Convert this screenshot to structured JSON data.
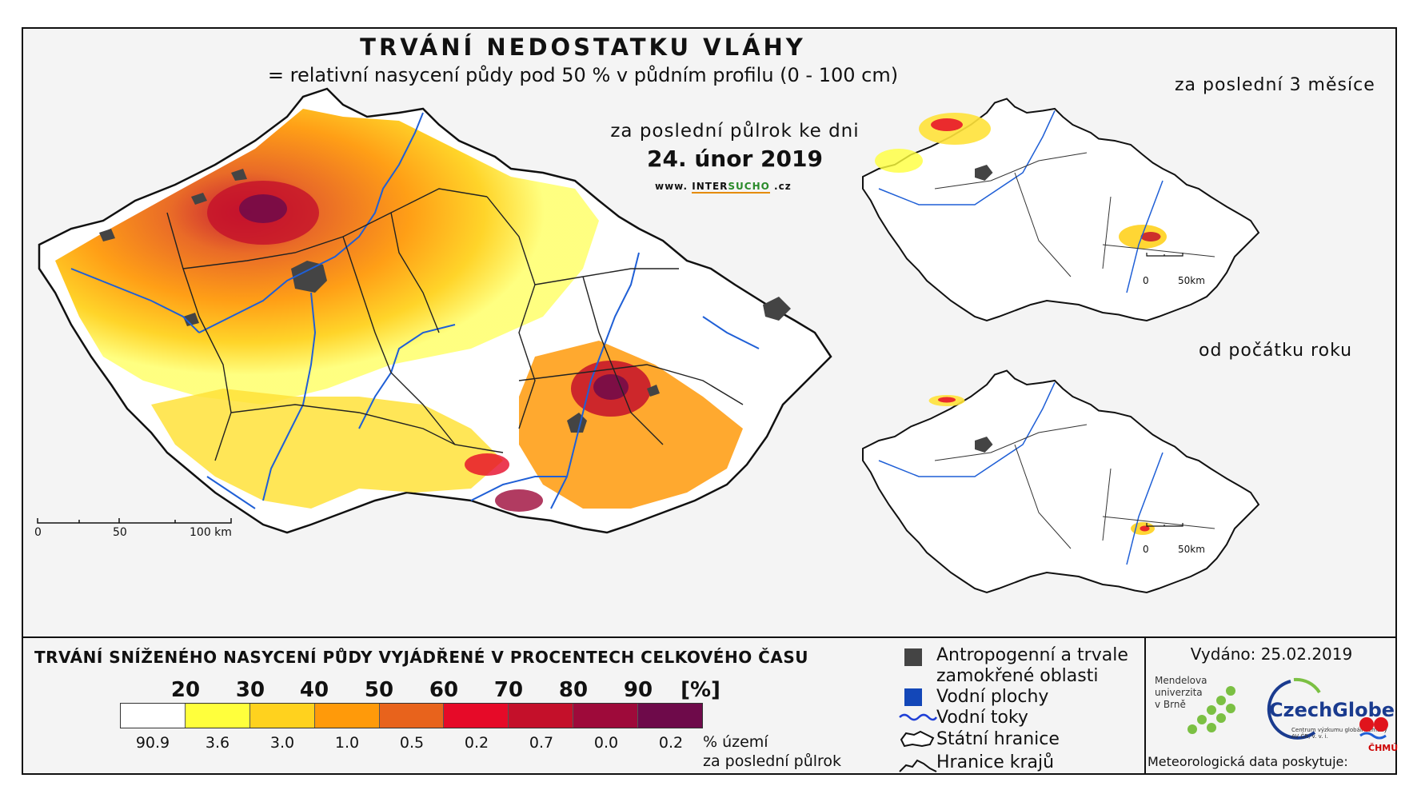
{
  "map": {
    "title": "TRVÁNÍ NEDOSTATKU VLÁHY",
    "subtitle": "= relativní nasycení půdy pod 50 % v půdním profilu (0 - 100 cm)",
    "period_label": "za poslední půlrok ke dni",
    "date": "24. únor 2019",
    "website_prefix": "www.",
    "website_brand1": "INTER",
    "website_brand2": "SUCHO",
    "website_suffix": ".cz",
    "scale": {
      "zero": "0",
      "mid": "50",
      "end": "100 km"
    }
  },
  "insets": [
    {
      "title": "za poslední 3 měsíce",
      "scale_zero": "0",
      "scale_end": "50km"
    },
    {
      "title": "od počátku roku",
      "scale_zero": "0",
      "scale_end": "50km"
    }
  ],
  "legend": {
    "title": "TRVÁNÍ SNÍŽENÉHO NASYCENÍ PŮDY VYJÁDŘENÉ V PROCENTECH CELKOVÉHO ČASU",
    "thresholds": [
      "20",
      "30",
      "40",
      "50",
      "60",
      "70",
      "80",
      "90"
    ],
    "unit": "[%]",
    "classes": [
      {
        "color": "#ffffff",
        "area_pct": "90.9"
      },
      {
        "color": "#ffff3c",
        "area_pct": "3.6"
      },
      {
        "color": "#ffd21e",
        "area_pct": "3.0"
      },
      {
        "color": "#ff9a0a",
        "area_pct": "1.0"
      },
      {
        "color": "#e8631c",
        "area_pct": "0.5"
      },
      {
        "color": "#e60a28",
        "area_pct": "0.2"
      },
      {
        "color": "#c4102a",
        "area_pct": "0.7"
      },
      {
        "color": "#9e0a3a",
        "area_pct": "0.0"
      },
      {
        "color": "#6e0a4a",
        "area_pct": "0.2"
      }
    ],
    "area_note_line1": "% území",
    "area_note_line2": "za poslední půlrok"
  },
  "key": {
    "anthropogenic_line1": "Antropogenní a trvale",
    "anthropogenic_line2": "zamokřené oblasti",
    "water_bodies": "Vodní plochy",
    "streams": "Vodní toky",
    "state_border": "Státní hranice",
    "region_border": "Hranice krajů"
  },
  "credits": {
    "issued": "Vydáno: 25.02.2019",
    "mendel_line1": "Mendelova",
    "mendel_line2": "univerzita",
    "mendel_line3": "v Brně",
    "czechglobe": "CzechGlobe",
    "czechglobe_sub": "Centrum výzkumu globální změny AV ČR, v. v. i.",
    "meteo_note": "Meteorologická data poskytuje:",
    "chmu": "ČHMÚ"
  }
}
